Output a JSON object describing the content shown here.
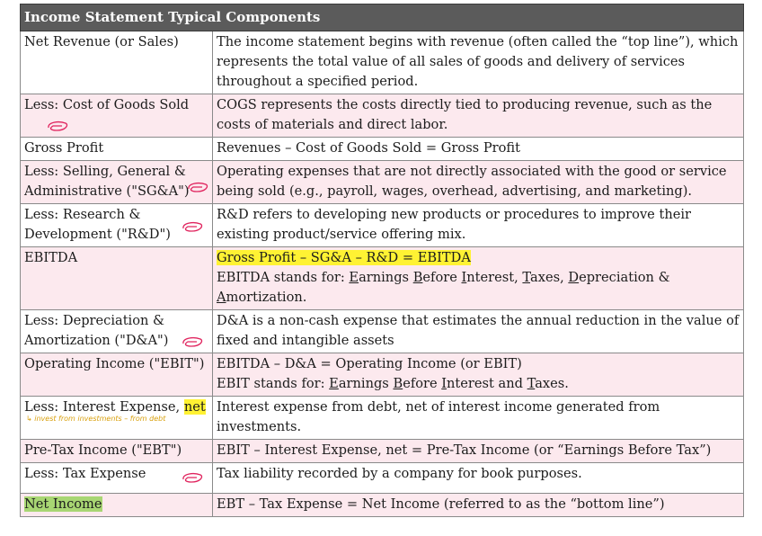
{
  "table": {
    "title": "Income Statement Typical Components",
    "rows": [
      {
        "label": "Net Revenue (or Sales)",
        "desc": "The income statement begins with revenue (often called the “top line”), which represents the total value of all sales of goods and delivery of services throughout a specified period."
      },
      {
        "label": "Less: Cost of Goods Sold",
        "desc": "COGS represents the costs directly tied to producing revenue, such as the costs of materials and direct labor."
      },
      {
        "label": "Gross Profit",
        "desc": "Revenues – Cost of Goods Sold = Gross Profit"
      },
      {
        "label": "Less: Selling, General & Administrative (\"SG&A\")",
        "desc": "Operating expenses that are not directly associated with the good or service being sold (e.g., payroll, wages, overhead, advertising, and marketing)."
      },
      {
        "label": "Less: Research & Development (\"R&D\")",
        "desc": "R&D refers to developing new products or procedures to improve their existing product/service offering mix."
      },
      {
        "label": "EBITDA",
        "formula": "Gross Profit – SG&A – R&D = EBITDA",
        "desc_prefix": "EBITDA stands for: ",
        "acronym": [
          "Earnings",
          "Before",
          "Interest",
          "Taxes",
          "Depreciation",
          "Amortization"
        ]
      },
      {
        "label": "Less: Depreciation & Amortization (\"D&A\")",
        "desc": "D&A is a non-cash expense that estimates the annual reduction in the value of fixed and intangible assets"
      },
      {
        "label": "Operating Income (\"EBIT\")",
        "formula": "EBITDA – D&A = Operating Income (or EBIT)",
        "desc_prefix": "EBIT stands for: ",
        "acronym": [
          "Earnings",
          "Before",
          "Interest",
          "Taxes"
        ]
      },
      {
        "label_prefix": "Less: Interest Expense, ",
        "label_highlight": "net",
        "handwritten_note": "↳ invest from investments  – from debt",
        "desc": "Interest expense from debt, net of interest income generated from investments."
      },
      {
        "label": "Pre-Tax Income (\"EBT\")",
        "desc": "EBIT – Interest Expense, net = Pre-Tax Income (or “Earnings Before Tax”)"
      },
      {
        "label": "Less: Tax Expense",
        "desc": "Tax liability recorded by a company for book purposes."
      },
      {
        "label": "Net Income",
        "desc": "EBT – Tax Expense = Net Income (referred to as the “bottom line”)"
      }
    ]
  },
  "colors": {
    "header_bg": "#5b5b5b",
    "row_tint": "#fce9ee",
    "highlight_yellow": "#fff233",
    "highlight_green": "#a8d673",
    "scribble": "#e0245e"
  }
}
